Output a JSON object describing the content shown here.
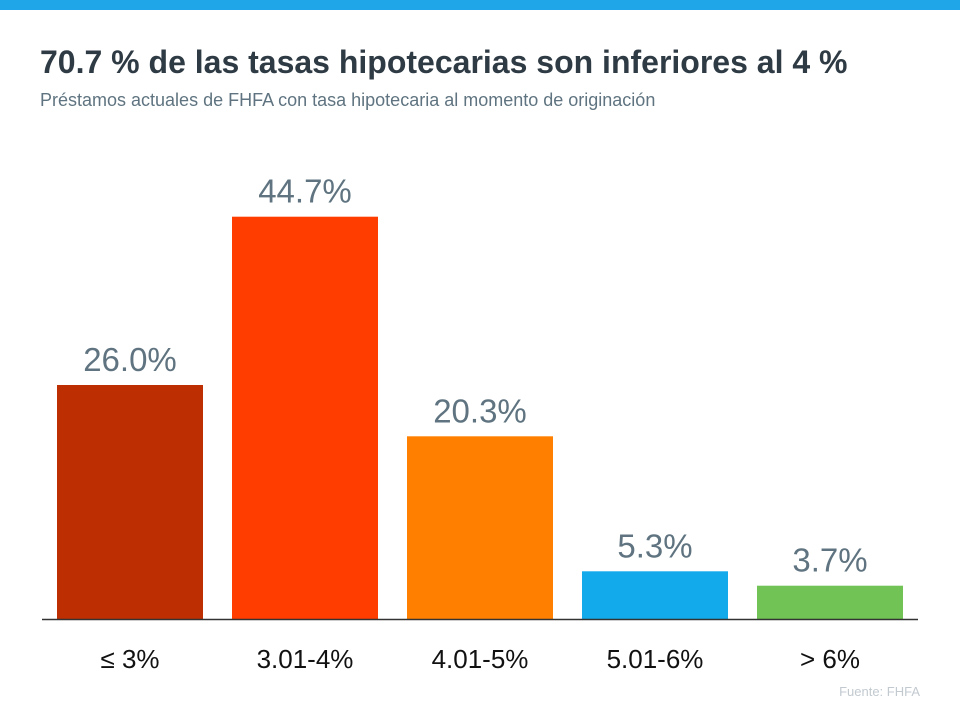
{
  "header": {
    "title": "70.7 % de las tasas hipotecarias son inferiores al 4 %",
    "subtitle": "Préstamos actuales de FHFA con tasa hipotecaria al momento de originación"
  },
  "footer": {
    "source": "Fuente: FHFA"
  },
  "colors": {
    "top_bar": "#1ea6e9",
    "axis": "#333333",
    "value_label": "#5f7480",
    "category_label": "#111111"
  },
  "chart_data": {
    "type": "bar",
    "categories": [
      "≤ 3%",
      "3.01-4%",
      "4.01-5%",
      "5.01-6%",
      "> 6%"
    ],
    "values": [
      26.0,
      44.7,
      20.3,
      5.3,
      3.7
    ],
    "value_labels": [
      "26.0%",
      "44.7%",
      "20.3%",
      "5.3%",
      "3.7%"
    ],
    "bar_colors": [
      "#bd2f02",
      "#ff3d00",
      "#ff7f00",
      "#12aaeb",
      "#71c355"
    ],
    "title": "70.7 % de las tasas hipotecarias son inferiores al 4 %",
    "xlabel": "",
    "ylabel": "",
    "ylim": [
      0,
      50
    ],
    "grid": false,
    "legend": "none"
  }
}
